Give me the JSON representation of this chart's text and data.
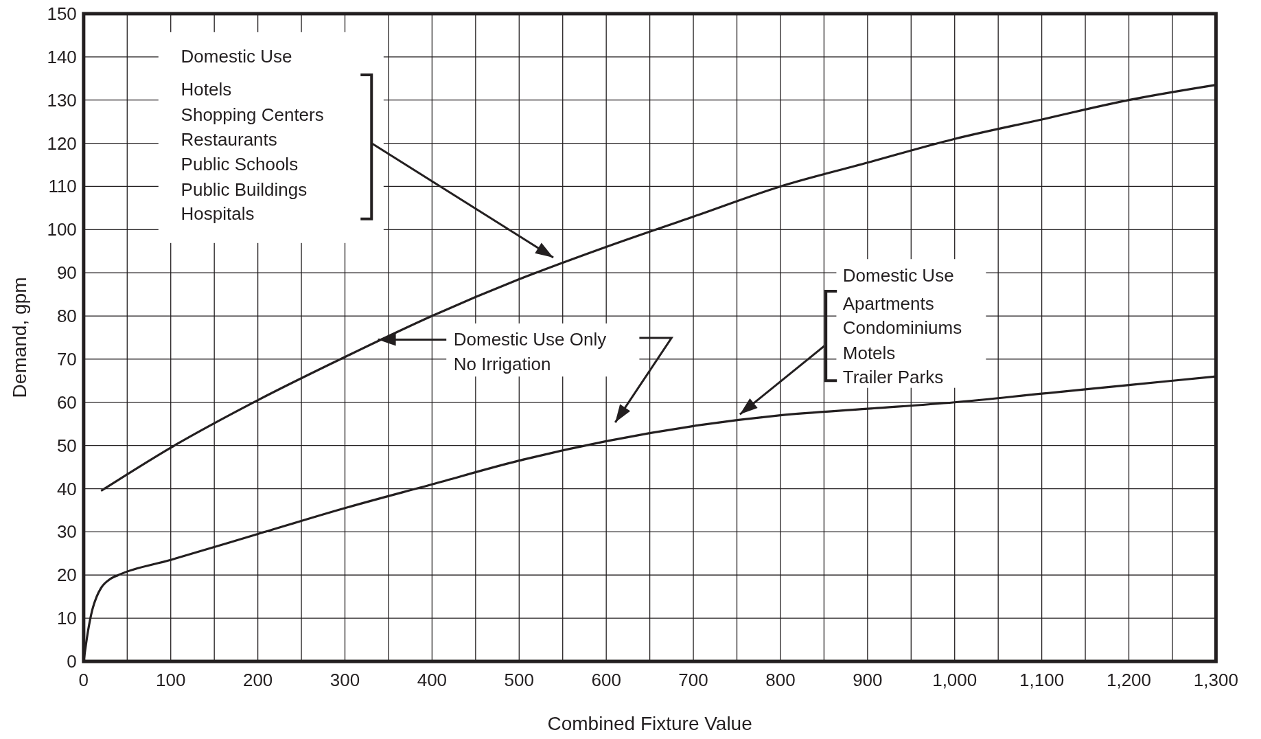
{
  "chart_data": {
    "type": "line",
    "xlabel": "Combined Fixture Value",
    "ylabel": "Demand, gpm",
    "xlim": [
      0,
      1300
    ],
    "ylim": [
      0,
      150
    ],
    "xticks": [
      0,
      100,
      200,
      300,
      400,
      500,
      600,
      700,
      800,
      900,
      {
        "value": 1000,
        "label": "1,000"
      },
      {
        "value": 1100,
        "label": "1,100"
      },
      {
        "value": 1200,
        "label": "1,200"
      },
      {
        "value": 1300,
        "label": "1,300"
      }
    ],
    "yticks": [
      0,
      10,
      20,
      30,
      40,
      50,
      60,
      70,
      80,
      90,
      100,
      110,
      120,
      130,
      140,
      150
    ],
    "grid": true,
    "line_style": "solid",
    "series": [
      {
        "color": "#231f20",
        "x": [
          20,
          100,
          200,
          300,
          400,
          500,
          600,
          700,
          800,
          900,
          1000,
          1100,
          1200,
          1300
        ],
        "values": [
          39.5,
          49.5,
          60.5,
          70.5,
          80,
          88.5,
          96,
          103,
          110,
          115.5,
          121,
          125.5,
          130,
          133.5
        ]
      },
      {
        "color": "#231f20",
        "x": [
          0,
          5,
          10,
          15,
          20,
          30,
          40,
          100,
          200,
          300,
          400,
          500,
          600,
          700,
          800,
          900,
          1000,
          1100,
          1200,
          1300
        ],
        "values": [
          0,
          7,
          12,
          15,
          17,
          19,
          20,
          23.5,
          29.5,
          35.5,
          41,
          46.5,
          51,
          54.5,
          57,
          58.5,
          60,
          62,
          64,
          66
        ]
      }
    ],
    "annotations": [
      "Domestic Use",
      "Hotels",
      "Shopping Centers",
      "Restaurants",
      "Public Schools",
      "Public Buildings",
      "Hospitals",
      "Domestic Use Only",
      "No Irrigation",
      "Domestic Use",
      "Apartments",
      "Condominiums",
      "Motels",
      "Trailer Parks"
    ]
  }
}
